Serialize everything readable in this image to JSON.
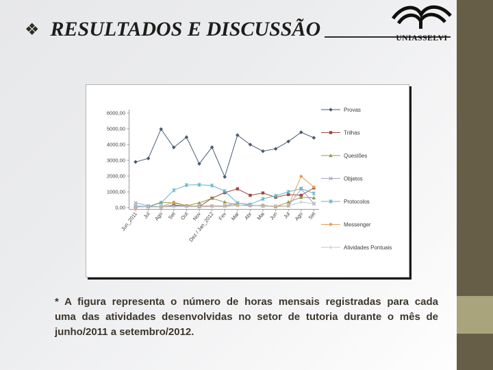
{
  "slide": {
    "bullet_glyph": "❖",
    "title": "RESULTADOS E DISCUSSÃO",
    "logo_text": "UNIASSELVI"
  },
  "caption": {
    "lines": {
      "0": "* A figura representa o número de horas mensais registradas para cada",
      "1": "uma das atividades desenvolvidas no setor de tutoria durante o mês de",
      "2": "junho/2011 a setembro/2012."
    }
  },
  "colors": {
    "sidebar": "#665e46",
    "sidebar_accent": "#a9a47b",
    "slide_background": "#ebecee",
    "title_text": "#1d1d1b",
    "caption_text": "#3b362c",
    "chart_border": "#b3b3b3",
    "chart_shadow": "#1a1a19"
  },
  "chart_data": {
    "type": "line",
    "title": "",
    "xlabel": "",
    "ylabel": "",
    "ylim": [
      0,
      6000
    ],
    "grid": false,
    "legend_position": "right",
    "ytick_labels": [
      "0,00",
      "1000,00",
      "2000,00",
      "3000,00",
      "4000,00",
      "5000,00",
      "6000,00"
    ],
    "categories": [
      "Jun_2011",
      "Jul",
      "Ago",
      "Set",
      "Out",
      "Nov",
      "Dez / Jan_2012",
      "Fev",
      "Mar",
      "Abr",
      "Mai",
      "Jun",
      "Jul",
      "Ago",
      "Set"
    ],
    "series": [
      {
        "name": "Provas",
        "color": "#4a5a6e",
        "marker": "diamond",
        "values": [
          2900,
          3120,
          4980,
          3820,
          4470,
          2780,
          3830,
          1950,
          4600,
          4000,
          3580,
          3730,
          4200,
          4780,
          4430
        ]
      },
      {
        "name": "Trilhas",
        "color": "#99493f",
        "marker": "square",
        "values": [
          30,
          60,
          40,
          160,
          110,
          60,
          600,
          950,
          1190,
          780,
          930,
          660,
          830,
          780,
          1250
        ]
      },
      {
        "name": "Questões",
        "color": "#8e9c4e",
        "marker": "triangle",
        "values": [
          100,
          60,
          340,
          300,
          120,
          300,
          590,
          350,
          160,
          150,
          110,
          60,
          350,
          650,
          620
        ]
      },
      {
        "name": "Objetos",
        "color": "#a79cc2",
        "marker": "x",
        "values": [
          310,
          110,
          60,
          110,
          110,
          100,
          110,
          110,
          300,
          160,
          110,
          100,
          110,
          1190,
          250
        ]
      },
      {
        "name": "Protocolos",
        "color": "#62b2c8",
        "marker": "asterisk",
        "values": [
          110,
          60,
          300,
          1100,
          1430,
          1450,
          1400,
          1050,
          280,
          200,
          550,
          750,
          1000,
          1210,
          900
        ]
      },
      {
        "name": "Messenger",
        "color": "#e09e56",
        "marker": "circle",
        "values": [
          40,
          50,
          50,
          350,
          120,
          60,
          100,
          110,
          160,
          110,
          160,
          60,
          110,
          1980,
          1300
        ]
      },
      {
        "name": "Atividades Pontuais",
        "color": "#b5c4d4",
        "marker": "plus",
        "values": [
          60,
          40,
          40,
          60,
          60,
          50,
          60,
          60,
          150,
          130,
          100,
          90,
          120,
          350,
          250
        ]
      }
    ]
  }
}
